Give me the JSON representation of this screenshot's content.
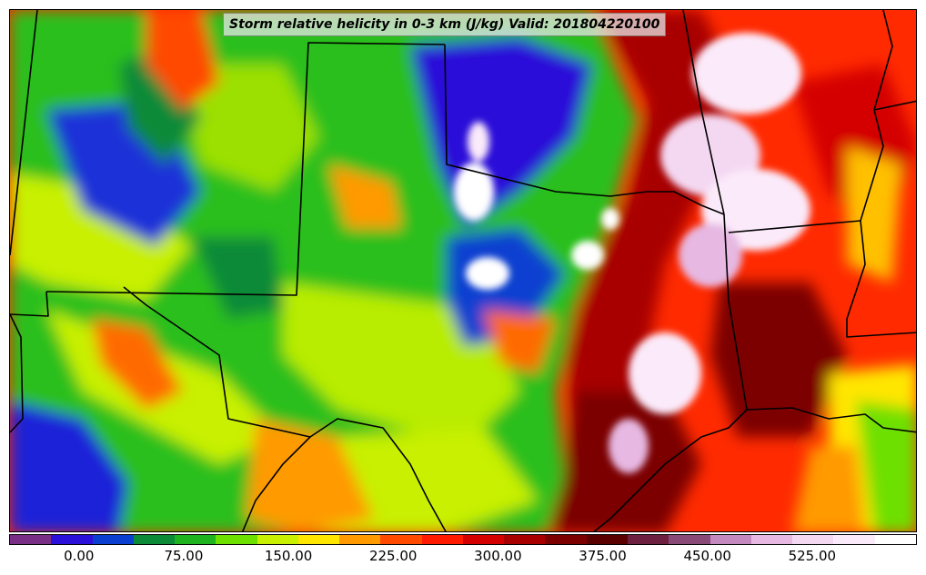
{
  "title": "Storm relative helicity in 0-3 km (J/kg) Valid: 201804220100",
  "colorbar": {
    "colors": [
      "#7a2f86",
      "#2a10d8",
      "#0a3fd0",
      "#0c8a38",
      "#1fb41f",
      "#6ee000",
      "#c8f000",
      "#ffe600",
      "#ff9a00",
      "#ff4a00",
      "#ff1a00",
      "#d40000",
      "#a80000",
      "#7c0000",
      "#5a0000",
      "#6e2040",
      "#8a4a78",
      "#c48ac0",
      "#e6b8e2",
      "#f4d8f2",
      "#fbeafa",
      "#ffffff"
    ],
    "tick_labels": [
      "0.00",
      "75.00",
      "150.00",
      "225.00",
      "300.00",
      "375.00",
      "450.00",
      "525.00"
    ],
    "tick_values": [
      0,
      75,
      150,
      225,
      300,
      375,
      450,
      525
    ],
    "min": -50,
    "max": 600,
    "step": 25
  }
}
